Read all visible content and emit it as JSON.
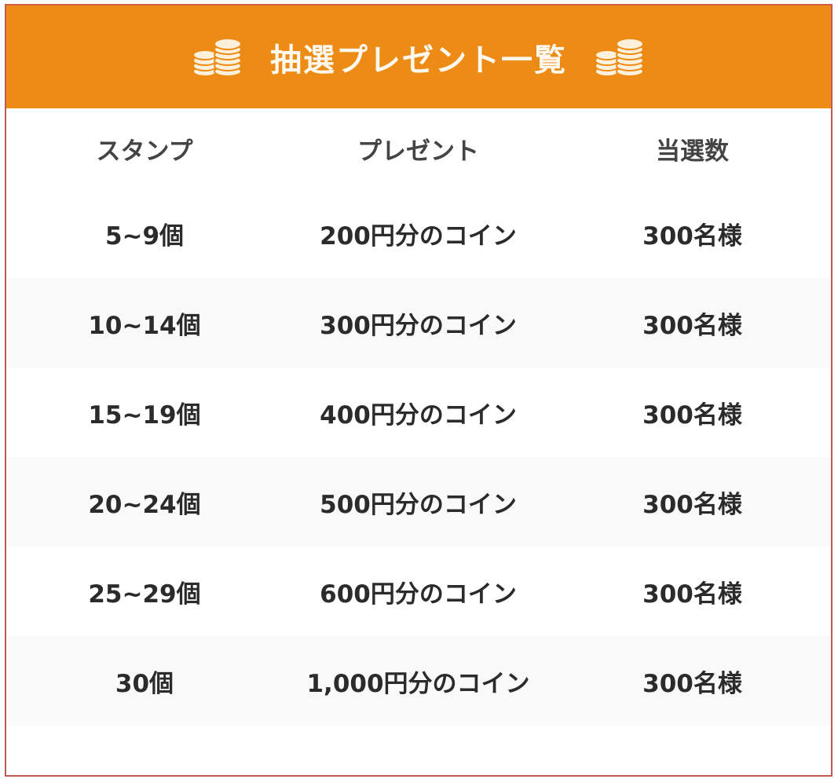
{
  "header": {
    "title": "抽選プレゼント一覧",
    "icon": "coins-icon",
    "color": "#ec8b16",
    "border_color": "#c25a55"
  },
  "columns": [
    "スタンプ",
    "プレゼント",
    "当選数"
  ],
  "rows": [
    [
      "5~9個",
      "200円分のコイン",
      "300名様"
    ],
    [
      "10~14個",
      "300円分のコイン",
      "300名様"
    ],
    [
      "15~19個",
      "400円分のコイン",
      "300名様"
    ],
    [
      "20~24個",
      "500円分のコイン",
      "300名様"
    ],
    [
      "25~29個",
      "600円分のコイン",
      "300名様"
    ],
    [
      "30個",
      "1,000円分のコイン",
      "300名様"
    ]
  ]
}
